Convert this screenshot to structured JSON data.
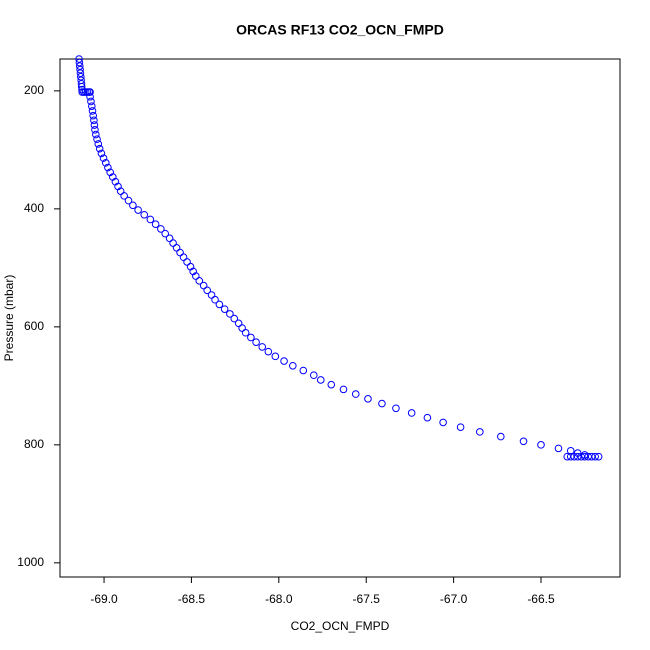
{
  "chart_data": {
    "type": "scatter",
    "title": "ORCAS RF13 CO2_OCN_FMPD",
    "x_label": "CO2_OCN_FMPD",
    "y_label": "Pressure (mbar)",
    "xlim": [
      -69.252,
      -66.048
    ],
    "ylim": [
      146,
      1024
    ],
    "y_reversed": true,
    "xticks": [
      {
        "value": -69,
        "label": "-69.0"
      },
      {
        "value": -68.5,
        "label": "-68.5"
      },
      {
        "value": -68,
        "label": "-68.0"
      },
      {
        "value": -67.5,
        "label": "-67.5"
      },
      {
        "value": -67,
        "label": "-67.0"
      },
      {
        "value": -66.5,
        "label": "-66.5"
      }
    ],
    "yticks": [
      200,
      400,
      600,
      800,
      1000
    ],
    "series": [
      {
        "color": "#0000ff",
        "x": [
          -69.143,
          -69.141,
          -69.139,
          -69.137,
          -69.135,
          -69.133,
          -69.131,
          -69.129,
          -69.128,
          -69.126,
          -69.125,
          -69.115,
          -69.105,
          -69.095,
          -69.085,
          -69.08,
          -69.08,
          -69.075,
          -69.07,
          -69.066,
          -69.062,
          -69.058,
          -69.055,
          -69.052,
          -69.047,
          -69.04,
          -69.033,
          -69.025,
          -69.015,
          -69.003,
          -68.99,
          -68.978,
          -68.965,
          -68.95,
          -68.935,
          -68.92,
          -68.905,
          -68.885,
          -68.86,
          -68.835,
          -68.805,
          -68.77,
          -68.735,
          -68.705,
          -68.675,
          -68.65,
          -68.625,
          -68.605,
          -68.585,
          -68.565,
          -68.545,
          -68.525,
          -68.505,
          -68.49,
          -68.475,
          -68.455,
          -68.43,
          -68.41,
          -68.385,
          -68.365,
          -68.34,
          -68.31,
          -68.28,
          -68.255,
          -68.23,
          -68.21,
          -68.19,
          -68.16,
          -68.13,
          -68.095,
          -68.06,
          -68.02,
          -67.97,
          -67.92,
          -67.86,
          -67.8,
          -67.76,
          -67.7,
          -67.63,
          -67.56,
          -67.49,
          -67.41,
          -67.33,
          -67.24,
          -67.15,
          -67.06,
          -66.96,
          -66.85,
          -66.73,
          -66.6,
          -66.5,
          -66.4,
          -66.33,
          -66.29,
          -66.25,
          -66.35,
          -66.33,
          -66.31,
          -66.29,
          -66.27,
          -66.25,
          -66.23,
          -66.21,
          -66.19,
          -66.17
        ],
        "values": [
          146,
          152,
          158,
          164,
          170,
          176,
          182,
          188,
          193,
          198,
          202,
          202,
          202,
          202,
          202,
          202,
          210,
          218,
          226,
          234,
          242,
          250,
          258,
          266,
          274,
          282,
          290,
          298,
          306,
          314,
          322,
          330,
          338,
          346,
          354,
          362,
          370,
          378,
          386,
          394,
          402,
          410,
          418,
          426,
          434,
          442,
          450,
          458,
          466,
          474,
          482,
          490,
          498,
          506,
          514,
          522,
          530,
          538,
          546,
          554,
          562,
          570,
          578,
          586,
          594,
          602,
          610,
          618,
          626,
          634,
          642,
          650,
          658,
          666,
          674,
          682,
          690,
          698,
          706,
          714,
          722,
          730,
          738,
          746,
          754,
          762,
          770,
          778,
          786,
          794,
          800,
          806,
          810,
          814,
          817,
          820,
          820,
          820,
          820,
          820,
          820,
          820,
          820,
          820,
          820
        ]
      }
    ]
  }
}
